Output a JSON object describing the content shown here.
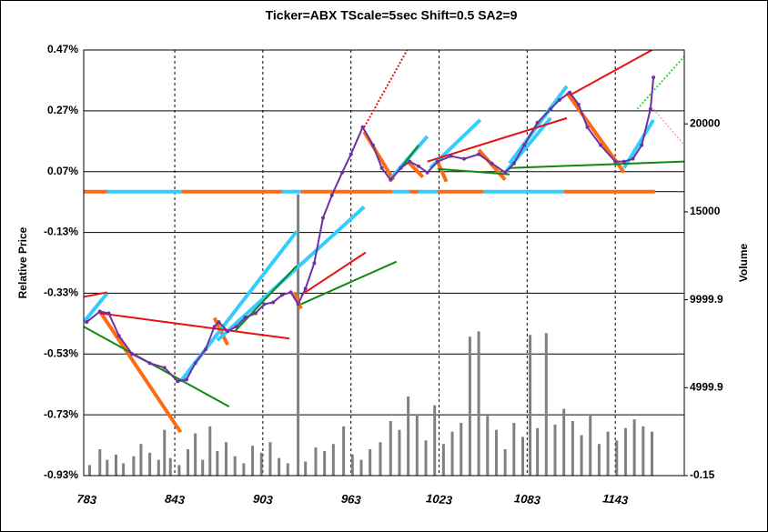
{
  "chart_data": {
    "type": "line",
    "title": "Ticker=ABX TScale=5sec  Shift=0.5 SA2=9",
    "y_label": "Relative Price",
    "y2_label": "Volume",
    "xlim": [
      781,
      1190
    ],
    "xticks": [
      783,
      843,
      903,
      963,
      1023,
      1083,
      1143
    ],
    "ylim": [
      -0.93,
      0.47
    ],
    "yticks": [
      {
        "value": 0.47,
        "label": "0.47%"
      },
      {
        "value": 0.27,
        "label": "0.27%"
      },
      {
        "value": 0.07,
        "label": "0.07%"
      },
      {
        "value": -0.13,
        "label": "-0.13%"
      },
      {
        "value": -0.33,
        "label": "-0.33%"
      },
      {
        "value": -0.53,
        "label": "-0.53%"
      },
      {
        "value": -0.73,
        "label": "-0.73%"
      },
      {
        "value": -0.93,
        "label": "-0.93%"
      }
    ],
    "y2lim": [
      -0.15,
      24200
    ],
    "y2ticks": [
      -0.15,
      4999.9,
      9999.9,
      15000,
      20000
    ],
    "grid": true,
    "series": [
      {
        "color": "#7030a0",
        "x": [
          783,
          792,
          798,
          805,
          814,
          826,
          836,
          845,
          851,
          857,
          864,
          870,
          873,
          879,
          885,
          891,
          898,
          904,
          910,
          916,
          922,
          927,
          932,
          938,
          944,
          950,
          957,
          963,
          971,
          978,
          984,
          990,
          997,
          1003,
          1009,
          1015,
          1022,
          1031,
          1040,
          1050,
          1059,
          1068,
          1074,
          1081,
          1090,
          1099,
          1105,
          1112,
          1118,
          1124,
          1133,
          1143,
          1149,
          1155,
          1161,
          1167,
          1169
        ],
        "values": [
          -0.425,
          -0.39,
          -0.396,
          -0.47,
          -0.53,
          -0.56,
          -0.575,
          -0.62,
          -0.614,
          -0.56,
          -0.515,
          -0.44,
          -0.425,
          -0.455,
          -0.44,
          -0.41,
          -0.396,
          -0.366,
          -0.36,
          -0.336,
          -0.327,
          -0.366,
          -0.315,
          -0.231,
          -0.082,
          -0.008,
          0.067,
          0.127,
          0.216,
          0.157,
          0.082,
          0.043,
          0.082,
          0.103,
          0.088,
          0.067,
          0.103,
          0.121,
          0.112,
          0.127,
          0.097,
          0.067,
          0.097,
          0.157,
          0.231,
          0.276,
          0.306,
          0.33,
          0.291,
          0.216,
          0.157,
          0.103,
          0.103,
          0.112,
          0.157,
          0.276,
          0.38
        ]
      }
    ],
    "volume": {
      "type": "bar",
      "axis": "y2",
      "color": "#808080",
      "x": [
        785,
        792,
        797,
        803,
        808,
        815,
        820,
        826,
        832,
        836,
        840,
        846,
        852,
        857,
        862,
        867,
        872,
        878,
        884,
        890,
        896,
        902,
        908,
        914,
        920,
        927,
        932,
        939,
        945,
        951,
        958,
        964,
        970,
        976,
        983,
        990,
        996,
        1002,
        1008,
        1014,
        1020,
        1026,
        1032,
        1038,
        1044,
        1050,
        1056,
        1062,
        1068,
        1074,
        1080,
        1085,
        1090,
        1096,
        1102,
        1108,
        1114,
        1120,
        1126,
        1132,
        1138,
        1144,
        1150,
        1156,
        1162,
        1168
      ],
      "values": [
        600,
        1500,
        900,
        1200,
        700,
        1100,
        1800,
        1300,
        900,
        2600,
        1000,
        600,
        1500,
        2400,
        900,
        2800,
        1400,
        1900,
        1100,
        700,
        1700,
        1300,
        1900,
        1000,
        700,
        16000,
        800,
        1600,
        1400,
        1800,
        2800,
        1200,
        900,
        1500,
        1900,
        3100,
        2600,
        4500,
        3500,
        2000,
        4000,
        1800,
        2500,
        3000,
        7900,
        8200,
        3400,
        2600,
        1500,
        3000,
        2200,
        8000,
        2700,
        8100,
        2900,
        3800,
        3100,
        2300,
        3500,
        1800,
        2500,
        2000,
        2700,
        3200,
        2800,
        2500
      ]
    },
    "regime_band": {
      "value": 0.004,
      "segments": [
        {
          "color": "#ff6a13",
          "x": [
            781,
            797
          ]
        },
        {
          "color": "#33ccff",
          "x": [
            797,
            848
          ]
        },
        {
          "color": "#ff6a13",
          "x": [
            848,
            916
          ]
        },
        {
          "color": "#33ccff",
          "x": [
            916,
            929
          ]
        },
        {
          "color": "#ff6a13",
          "x": [
            929,
            991
          ]
        },
        {
          "color": "#33ccff",
          "x": [
            991,
            1003
          ]
        },
        {
          "color": "#ff6a13",
          "x": [
            1003,
            1009
          ]
        },
        {
          "color": "#33ccff",
          "x": [
            1009,
            1022
          ]
        },
        {
          "color": "#ff6a13",
          "x": [
            1022,
            1053
          ]
        },
        {
          "color": "#33ccff",
          "x": [
            1053,
            1108
          ]
        },
        {
          "color": "#ff6a13",
          "x": [
            1108,
            1170
          ]
        }
      ]
    },
    "trend_lines": [
      {
        "color": "#ff6a13",
        "width": 4,
        "style": "solid",
        "x": [
          792,
          847
        ],
        "values": [
          -0.39,
          -0.787
        ]
      },
      {
        "color": "#ff6a13",
        "width": 4,
        "style": "solid",
        "x": [
          870,
          879
        ],
        "values": [
          -0.411,
          -0.5
        ]
      },
      {
        "color": "#ff6a13",
        "width": 4,
        "style": "solid",
        "x": [
          924,
          929
        ],
        "values": [
          -0.327,
          -0.381
        ]
      },
      {
        "color": "#ff6a13",
        "width": 4,
        "style": "solid",
        "x": [
          972,
          992
        ],
        "values": [
          0.201,
          0.043
        ]
      },
      {
        "color": "#ff6a13",
        "width": 4,
        "style": "solid",
        "x": [
          1000,
          1012
        ],
        "values": [
          0.112,
          0.052
        ]
      },
      {
        "color": "#ff6a13",
        "width": 4,
        "style": "solid",
        "x": [
          1022,
          1028
        ],
        "values": [
          0.103,
          0.037
        ]
      },
      {
        "color": "#ff6a13",
        "width": 4,
        "style": "solid",
        "x": [
          1050,
          1068
        ],
        "values": [
          0.142,
          0.043
        ]
      },
      {
        "color": "#ff6a13",
        "width": 4,
        "style": "solid",
        "x": [
          1110,
          1149
        ],
        "values": [
          0.33,
          0.067
        ]
      },
      {
        "color": "#33ccff",
        "width": 4,
        "style": "solid",
        "x": [
          781,
          797
        ],
        "values": [
          -0.425,
          -0.33
        ]
      },
      {
        "color": "#33ccff",
        "width": 4,
        "style": "solid",
        "x": [
          847,
          926
        ],
        "values": [
          -0.62,
          -0.127
        ]
      },
      {
        "color": "#33ccff",
        "width": 4,
        "style": "solid",
        "x": [
          872,
          972
        ],
        "values": [
          -0.485,
          -0.046
        ]
      },
      {
        "color": "#33ccff",
        "width": 4,
        "style": "solid",
        "x": [
          991,
          1015
        ],
        "values": [
          0.052,
          0.186
        ]
      },
      {
        "color": "#33ccff",
        "width": 4,
        "style": "solid",
        "x": [
          1017,
          1051
        ],
        "values": [
          0.082,
          0.24
        ]
      },
      {
        "color": "#33ccff",
        "width": 4,
        "style": "solid",
        "x": [
          1068,
          1099
        ],
        "values": [
          0.067,
          0.246
        ]
      },
      {
        "color": "#33ccff",
        "width": 4,
        "style": "solid",
        "x": [
          1071,
          1110
        ],
        "values": [
          0.097,
          0.351
        ]
      },
      {
        "color": "#33ccff",
        "width": 4,
        "style": "solid",
        "x": [
          1149,
          1169
        ],
        "values": [
          0.082,
          0.24
        ]
      },
      {
        "color": "#e81010",
        "width": 2,
        "style": "solid",
        "x": [
          781,
          797
        ],
        "values": [
          -0.342,
          -0.327
        ]
      },
      {
        "color": "#e81010",
        "width": 2,
        "style": "solid",
        "x": [
          792,
          921
        ],
        "values": [
          -0.396,
          -0.479
        ]
      },
      {
        "color": "#e81010",
        "width": 2,
        "style": "solid",
        "x": [
          929,
          973
        ],
        "values": [
          -0.336,
          -0.196
        ]
      },
      {
        "color": "#e81010",
        "width": 2,
        "style": "solid",
        "x": [
          1015,
          1110
        ],
        "values": [
          0.103,
          0.246
        ]
      },
      {
        "color": "#e81010",
        "width": 2,
        "style": "solid",
        "x": [
          1112,
          1177
        ],
        "values": [
          0.321,
          0.494
        ]
      },
      {
        "color": "#118811",
        "width": 2,
        "style": "solid",
        "x": [
          781,
          880
        ],
        "values": [
          -0.44,
          -0.703
        ]
      },
      {
        "color": "#118811",
        "width": 2,
        "style": "solid",
        "x": [
          884,
          926
        ],
        "values": [
          -0.455,
          -0.24
        ]
      },
      {
        "color": "#118811",
        "width": 2,
        "style": "solid",
        "x": [
          929,
          994
        ],
        "values": [
          -0.366,
          -0.226
        ]
      },
      {
        "color": "#118811",
        "width": 2,
        "style": "solid",
        "x": [
          997,
          1009
        ],
        "values": [
          0.082,
          0.157
        ]
      },
      {
        "color": "#118811",
        "width": 2,
        "style": "solid",
        "x": [
          1022,
          1071
        ],
        "values": [
          0.079,
          0.061
        ]
      },
      {
        "color": "#118811",
        "width": 2,
        "style": "solid",
        "x": [
          1071,
          1190
        ],
        "values": [
          0.082,
          0.103
        ]
      },
      {
        "color": "#e81010",
        "width": 2,
        "style": "dotted",
        "x": [
          972,
          1003
        ],
        "values": [
          0.216,
          0.485
        ]
      },
      {
        "color": "#33dd33",
        "width": 2,
        "style": "dotted",
        "x": [
          1158,
          1190
        ],
        "values": [
          0.276,
          0.449
        ]
      },
      {
        "color": "#ff66cc",
        "width": 1,
        "style": "dotted",
        "x": [
          1169,
          1190
        ],
        "values": [
          0.276,
          0.157
        ]
      }
    ]
  }
}
